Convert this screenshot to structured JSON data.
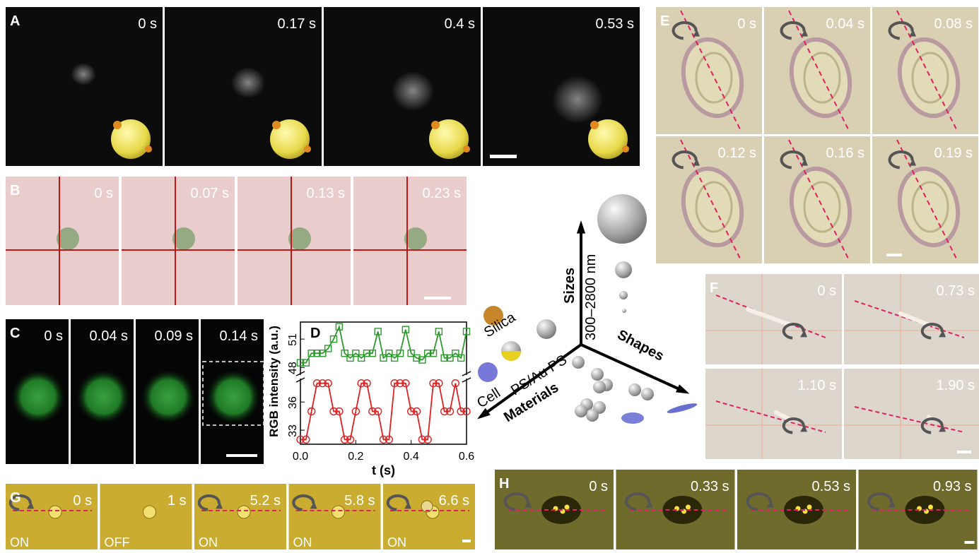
{
  "panels": {
    "A": {
      "label": "A",
      "times": [
        "0 s",
        "0.17 s",
        "0.4 s",
        "0.53 s"
      ]
    },
    "B": {
      "label": "B",
      "times": [
        "0 s",
        "0.07 s",
        "0.13 s",
        "0.23 s"
      ]
    },
    "C": {
      "label": "C",
      "times": [
        "0 s",
        "0.04 s",
        "0.09 s",
        "0.14 s"
      ]
    },
    "E": {
      "label": "E",
      "times": [
        "0 s",
        "0.04 s",
        "0.08 s",
        "0.12 s",
        "0.16 s",
        "0.19 s"
      ]
    },
    "F": {
      "label": "F",
      "times": [
        "0 s",
        "0.73 s",
        "1.10 s",
        "1.90 s"
      ]
    },
    "G": {
      "label": "G",
      "times": [
        "0 s",
        "1 s",
        "5.2 s",
        "5.8 s",
        "6.6 s"
      ],
      "states": [
        "ON",
        "OFF",
        "ON",
        "ON",
        "ON"
      ]
    },
    "H": {
      "label": "H",
      "times": [
        "0 s",
        "0.33 s",
        "0.53 s",
        "0.93 s"
      ]
    }
  },
  "diagram": {
    "sizes": "Sizes",
    "range": "300–2800 nm",
    "shapes": "Shapes",
    "materials": "Materials",
    "material_names": [
      "Silica",
      "Cell",
      "PS/Au PS"
    ]
  },
  "chart_data": {
    "type": "line",
    "title": "D",
    "y_label": "RGB intensity (a.u.)",
    "x_label": "t (s)",
    "x": [
      0,
      0.02,
      0.04,
      0.06,
      0.08,
      0.1,
      0.12,
      0.14,
      0.16,
      0.18,
      0.2,
      0.22,
      0.24,
      0.26,
      0.28,
      0.3,
      0.32,
      0.34,
      0.36,
      0.38,
      0.4,
      0.42,
      0.44,
      0.46,
      0.48,
      0.5,
      0.52,
      0.54,
      0.56,
      0.58,
      0.6
    ],
    "xlim": [
      0,
      0.6
    ],
    "xticks": [
      {
        "value": 0,
        "label": "0.0"
      },
      0.2,
      0.4,
      0.6
    ],
    "ylim": [
      31.5,
      38.5
    ],
    "yticks": [
      33,
      36
    ],
    "ylim_upper": [
      47.2,
      52.8
    ],
    "yticks_upper": [
      48,
      51
    ],
    "series": [
      {
        "color": "#2a9a2a",
        "axis": "upper",
        "values": [
          48.5,
          48.5,
          49.5,
          49.5,
          49.5,
          50.0,
          51.0,
          52.3,
          49.5,
          49.0,
          49.5,
          49.0,
          49.5,
          49.5,
          51.8,
          49.0,
          49.5,
          49.0,
          49.5,
          52.0,
          49.5,
          49.0,
          48.8,
          49.5,
          49.5,
          51.8,
          49.0,
          49.0,
          49.5,
          49.0,
          51.8
        ]
      },
      {
        "color": "#e02020",
        "values": [
          32,
          32,
          35,
          38,
          38,
          38,
          35,
          35,
          32,
          32,
          35,
          38,
          38,
          35,
          35,
          32,
          32,
          38,
          38,
          38,
          35,
          35,
          32,
          32,
          38,
          38,
          35,
          35,
          38,
          35,
          35
        ]
      }
    ]
  }
}
